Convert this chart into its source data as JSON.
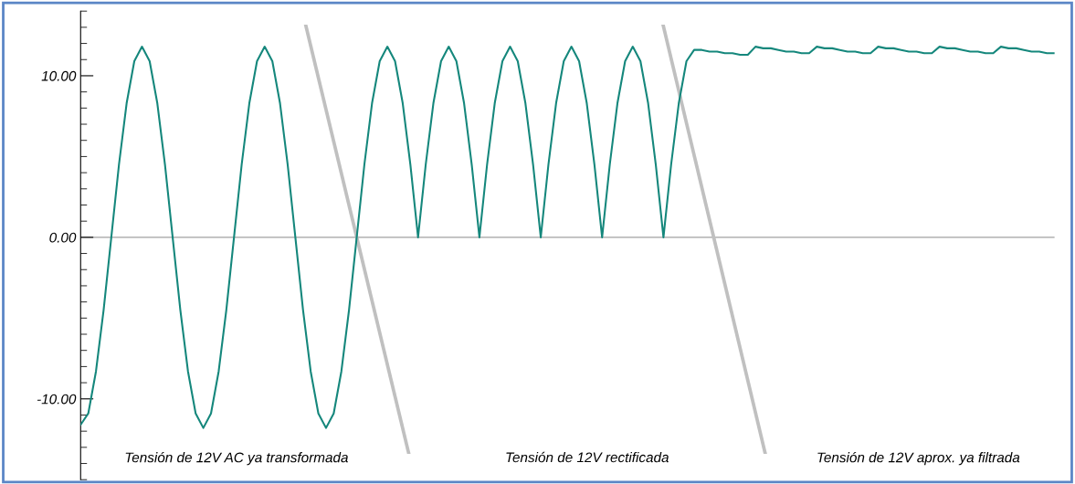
{
  "chart_data": {
    "type": "line",
    "categories": [
      null,
      null,
      null,
      null,
      null,
      null,
      null,
      null,
      null,
      null,
      null,
      null,
      null,
      null,
      null,
      null,
      null,
      null,
      null,
      null,
      null,
      null,
      null,
      null,
      null,
      null,
      null,
      null,
      null,
      null,
      null,
      null,
      null,
      null,
      null,
      null,
      null,
      null,
      null,
      null,
      null,
      null,
      null,
      null,
      null,
      null,
      null,
      null,
      null,
      null,
      null,
      null,
      null,
      null,
      null,
      null,
      null,
      null,
      null,
      null,
      null,
      null,
      null,
      null,
      null,
      null,
      null,
      null,
      null,
      null,
      null,
      null,
      null,
      null,
      null,
      null,
      null,
      null,
      null,
      null,
      null,
      null,
      null,
      null,
      null,
      null,
      null,
      null,
      null,
      null,
      null,
      null,
      null,
      null,
      null,
      null,
      null,
      null,
      null,
      null,
      null,
      null,
      null,
      null,
      null,
      null,
      null,
      null,
      null,
      null,
      null,
      null,
      null,
      null,
      null,
      null,
      null,
      null,
      null,
      null,
      null,
      null,
      null,
      null,
      null,
      null,
      null,
      null
    ],
    "series": [
      {
        "color": "#15877c",
        "values": [
          -11.6,
          -10.9,
          -8.3,
          -4.5,
          0,
          4.5,
          8.3,
          10.9,
          11.8,
          10.9,
          8.3,
          4.5,
          0,
          -4.5,
          -8.3,
          -10.9,
          -11.8,
          -10.9,
          -8.3,
          -4.5,
          0,
          4.5,
          8.3,
          10.9,
          11.8,
          10.9,
          8.3,
          4.5,
          0,
          -4.5,
          -8.3,
          -10.9,
          -11.8,
          -10.9,
          -8.3,
          -4.5,
          0,
          4.5,
          8.3,
          10.9,
          11.8,
          10.9,
          8.3,
          4.5,
          0,
          4.5,
          8.3,
          10.9,
          11.8,
          10.9,
          8.3,
          4.5,
          0,
          4.5,
          8.3,
          10.9,
          11.8,
          10.9,
          8.3,
          4.5,
          0,
          4.5,
          8.3,
          10.9,
          11.8,
          10.9,
          8.3,
          4.5,
          0,
          4.5,
          8.3,
          10.9,
          11.8,
          10.9,
          8.3,
          4.5,
          0,
          4.5,
          8.3,
          10.9,
          11.6,
          11.6,
          11.5,
          11.5,
          11.4,
          11.4,
          11.3,
          11.3,
          11.8,
          11.7,
          11.7,
          11.6,
          11.5,
          11.5,
          11.4,
          11.4,
          11.8,
          11.7,
          11.7,
          11.6,
          11.5,
          11.5,
          11.4,
          11.4,
          11.8,
          11.7,
          11.7,
          11.6,
          11.5,
          11.5,
          11.4,
          11.4,
          11.8,
          11.7,
          11.7,
          11.6,
          11.5,
          11.5,
          11.4,
          11.4,
          11.8,
          11.7,
          11.7,
          11.6,
          11.5,
          11.5,
          11.4,
          11.4
        ]
      }
    ],
    "ylim": [
      -15,
      14
    ],
    "yticks": [
      {
        "value": -10,
        "label": "-10.00"
      },
      {
        "value": 0,
        "label": "0.00"
      },
      {
        "value": 10,
        "label": "10.00"
      }
    ],
    "tick_labels": "y",
    "grid": false,
    "legend": false,
    "marker": "none",
    "line_style": "solid",
    "ref_lines": [
      {
        "axis": "y",
        "value": 0,
        "color": "#a0a0a0"
      }
    ],
    "annotations": [
      "Tensión de 12V AC ya transformada",
      "Tensión de 12V rectificada",
      "Tensión de 12V aprox. ya filtrada"
    ]
  }
}
